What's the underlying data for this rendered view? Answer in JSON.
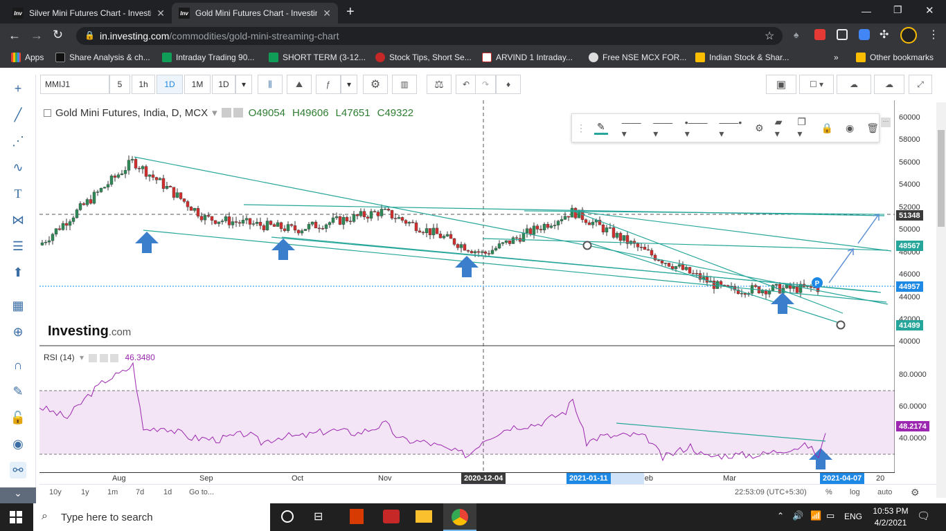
{
  "browser": {
    "tabs": [
      {
        "title": "Silver Mini Futures Chart - Investi",
        "active": false
      },
      {
        "title": "Gold Mini Futures Chart - Investin",
        "active": true
      }
    ],
    "url_host": "in.investing.com",
    "url_path": "/commodities/gold-mini-streaming-chart",
    "bookmarks": [
      "Apps",
      "Share Analysis & ch...",
      "Intraday Trading 90...",
      "SHORT TERM (3-12...",
      "Stock Tips, Short Se...",
      "ARVIND 1 Intraday...",
      "Free NSE MCX FOR...",
      "Indian Stock & Shar..."
    ],
    "other_bookmarks": "Other bookmarks"
  },
  "toolbar": {
    "symbol": "MMIJ1",
    "intervals": [
      "5",
      "1h",
      "1D",
      "1M",
      "1D"
    ]
  },
  "chart": {
    "title": "Gold Mini Futures, India, D, MCX",
    "ohlc": {
      "o": "O49054",
      "h": "H49606",
      "l": "L47651",
      "c": "C49322"
    },
    "price_ticks": [
      "60000",
      "58000",
      "56000",
      "54000",
      "52000",
      "50000",
      "48000",
      "46000",
      "44000",
      "42000",
      "40000"
    ],
    "price_tags": [
      {
        "label": "51348",
        "color": "#3a3a3a"
      },
      {
        "label": "48567",
        "color": "#26a69a"
      },
      {
        "label": "44957",
        "color": "#1e88e5"
      },
      {
        "label": "41499",
        "color": "#26a69a"
      }
    ],
    "rsi_label": "RSI (14)",
    "rsi_value": "46.3480",
    "rsi_ticks": [
      "80.0000",
      "60.0000",
      "40.0000"
    ],
    "rsi_tag": "48.2174",
    "x_labels": [
      "Aug",
      "Sep",
      "Oct",
      "Nov",
      "Feb",
      "Mar",
      "20"
    ],
    "x_highlights": [
      "2020-12-04",
      "2021-01-11",
      "2021-04-07"
    ],
    "watermark": "Investing",
    "watermark_suffix": ".com",
    "marker": "P"
  },
  "chart_data": {
    "type": "line",
    "x": [
      "2020-07-01",
      "2020-08-07",
      "2020-09-01",
      "2020-10-01",
      "2020-11-02",
      "2020-12-04",
      "2021-01-08",
      "2021-02-01",
      "2021-03-01",
      "2021-04-02"
    ],
    "series": [
      {
        "values": [
          48800,
          56300,
          51200,
          50200,
          51800,
          48000,
          51800,
          48200,
          44800,
          44957
        ]
      }
    ],
    "ylim": [
      40000,
      61000
    ]
  },
  "bottom": {
    "ranges": [
      "10y",
      "1y",
      "1m",
      "7d",
      "1d",
      "Go to..."
    ],
    "time": "22:53:09 (UTC+5:30)",
    "pct": "%",
    "log": "log",
    "auto": "auto"
  },
  "taskbar": {
    "search": "Type here to search",
    "lang": "ENG",
    "time": "10:53 PM",
    "date": "4/2/2021"
  }
}
